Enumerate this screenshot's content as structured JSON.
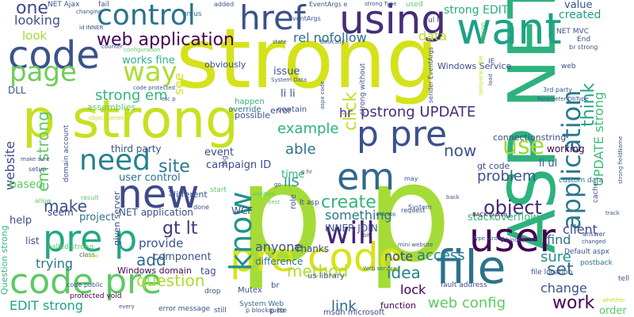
{
  "words": [
    {
      "text": "strong",
      "color": "#d5e21a"
    },
    {
      "text": "p p",
      "color": "#a5db36"
    },
    {
      "text": "p strong",
      "color": "#c7e020"
    },
    {
      "text": "ASP NET",
      "color": "#2db27d"
    },
    {
      "text": "using",
      "color": "#472c7a"
    },
    {
      "text": "code",
      "color": "#3b528b"
    },
    {
      "text": "control",
      "color": "#2c728e"
    },
    {
      "text": "href",
      "color": "#3b528b"
    },
    {
      "text": "want",
      "color": "#1fa187"
    },
    {
      "text": "new",
      "color": "#3e4a89"
    },
    {
      "text": "file",
      "color": "#2c728e"
    },
    {
      "text": "user",
      "color": "#440154"
    },
    {
      "text": "code pre",
      "color": "#5ec962"
    },
    {
      "text": "pre code",
      "color": "#d8e219"
    },
    {
      "text": "pre p",
      "color": "#22a884"
    },
    {
      "text": "p pre",
      "color": "#3b528b"
    },
    {
      "text": "em",
      "color": "#31688e"
    },
    {
      "text": "need",
      "color": "#26828e"
    },
    {
      "text": "will",
      "color": "#482475"
    },
    {
      "text": "know",
      "color": "#21918c"
    },
    {
      "text": "application",
      "color": "#2a788e"
    },
    {
      "text": "page",
      "color": "#6ece58"
    },
    {
      "text": "way",
      "color": "#addc30"
    },
    {
      "text": "web application",
      "color": "#440154"
    },
    {
      "text": "use",
      "color": "#a0da39"
    },
    {
      "text": "one",
      "color": "#3e4a89"
    },
    {
      "text": "strong EDIT",
      "color": "#27ad81"
    },
    {
      "text": "created",
      "color": "#1f9e89"
    },
    {
      "text": "value",
      "color": "#3b528b"
    },
    {
      "text": "strong em",
      "color": "#35b779"
    },
    {
      "text": "rel nofollow",
      "color": "#2c728e"
    },
    {
      "text": "pstrong UPDATE",
      "color": "#472d7b"
    },
    {
      "text": "example",
      "color": "#2db27d"
    },
    {
      "text": "think",
      "color": "#20a386"
    },
    {
      "text": "UPDATE strong",
      "color": "#3dbc74"
    },
    {
      "text": "website",
      "color": "#3e4989"
    },
    {
      "text": "em strong",
      "color": "#5ec962"
    },
    {
      "text": "site",
      "color": "#2a788e"
    },
    {
      "text": "create",
      "color": "#31b57b"
    },
    {
      "text": "object",
      "color": "#472c7a"
    },
    {
      "text": "problem",
      "color": "#3b528b"
    },
    {
      "text": "make",
      "color": "#3b528b"
    },
    {
      "text": "gt lt",
      "color": "#46327e"
    },
    {
      "text": "add",
      "color": "#31688e"
    },
    {
      "text": "access",
      "color": "#287c8e"
    },
    {
      "text": "set",
      "color": "#31688e"
    },
    {
      "text": "method",
      "color": "#addc30"
    },
    {
      "text": "idea",
      "color": "#26828e"
    },
    {
      "text": "work",
      "color": "#440154"
    },
    {
      "text": "web config",
      "color": "#5ec962"
    },
    {
      "text": "question",
      "color": "#addc30"
    },
    {
      "text": "EDIT strong",
      "color": "#20a386"
    },
    {
      "text": "link",
      "color": "#31688e"
    },
    {
      "text": "change",
      "color": "#3b528b"
    },
    {
      "text": "sure",
      "color": "#21918c"
    },
    {
      "text": "lock",
      "color": "#440154"
    },
    {
      "text": "now",
      "color": "#3b528b"
    },
    {
      "text": "able",
      "color": "#2c728e"
    },
    {
      "text": "look",
      "color": "#a5db36"
    },
    {
      "text": "looking",
      "color": "#3b528b"
    },
    {
      "text": "data",
      "color": "#b8de29"
    },
    {
      "text": "click",
      "color": "#c2df23"
    },
    {
      "text": "see",
      "color": "#d2e21b"
    },
    {
      "text": "hr",
      "color": "#46327e"
    },
    {
      "text": "something",
      "color": "#2a788e"
    },
    {
      "text": "trying",
      "color": "#2a788e"
    },
    {
      "text": "anyone",
      "color": "#3b528b"
    },
    {
      "text": "note",
      "color": "#3e4a89"
    },
    {
      "text": "IIS",
      "color": "#21918c"
    },
    {
      "text": "client",
      "color": "#3e4989"
    },
    {
      "text": "find",
      "color": "#2c728e"
    },
    {
      "text": "stackoverflow",
      "color": "#35b779"
    },
    {
      "text": "provide",
      "color": "#3b528b"
    },
    {
      "text": "component",
      "color": "#3b528b"
    },
    {
      "text": "working",
      "color": "#440154"
    },
    {
      "text": "campaign ID",
      "color": "#3e4a89"
    },
    {
      "text": "issue",
      "color": "#3b528b"
    },
    {
      "text": "li li",
      "color": "#3b528b"
    },
    {
      "text": "li ul",
      "color": "#3b528b"
    },
    {
      "text": "time",
      "color": "#2db27d"
    },
    {
      "text": "event",
      "color": "#3e4a89"
    },
    {
      "text": "user control",
      "color": "#2c728e"
    },
    {
      "text": "third party",
      "color": "#3b528b"
    },
    {
      "text": "works fine",
      "color": "#2db27d"
    },
    {
      "text": "NET application",
      "color": "#3b528b"
    },
    {
      "text": "help",
      "color": "#3e4a89"
    },
    {
      "text": "project",
      "color": "#2c728e"
    },
    {
      "text": "based",
      "color": "#5ec962"
    },
    {
      "text": "list",
      "color": "#3b528b"
    },
    {
      "text": "DLL",
      "color": "#3b528b"
    },
    {
      "text": "seem",
      "color": "#3e4a89"
    },
    {
      "text": "tag",
      "color": "#3b528b"
    },
    {
      "text": "Thanks",
      "color": "#3e4a89"
    },
    {
      "text": "difference",
      "color": "#2c728e"
    },
    {
      "text": "INNER JOIN",
      "color": "#3b528b"
    },
    {
      "text": "WCF",
      "color": "#3b528b"
    },
    {
      "text": "connectionstring",
      "color": "#3e4a89"
    },
    {
      "text": "gt code",
      "color": "#3b528b"
    },
    {
      "text": "Windows Service",
      "color": "#3e4a89"
    },
    {
      "text": "obviously",
      "color": "#3b528b"
    },
    {
      "text": "possible",
      "color": "#3b528b"
    },
    {
      "text": "error",
      "color": "#3e4a89"
    },
    {
      "text": "override",
      "color": "#2c728e"
    },
    {
      "text": "contain",
      "color": "#3b528b"
    },
    {
      "text": "happen",
      "color": "#2db27d"
    },
    {
      "text": "different",
      "color": "#3b528b"
    },
    {
      "text": "Windows domain",
      "color": "#440154"
    },
    {
      "text": "given server",
      "color": "#3e4a89"
    },
    {
      "text": "assemblies",
      "color": "#5ec962"
    },
    {
      "text": "Question strong",
      "color": "#35b779"
    },
    {
      "text": "protected void",
      "color": "#440154"
    },
    {
      "text": "Mutex",
      "color": "#3b528b"
    },
    {
      "text": "br",
      "color": "#3b528b"
    },
    {
      "text": "us library",
      "color": "#3b528b"
    },
    {
      "text": "msdn microsoft",
      "color": "#3e4a89"
    },
    {
      "text": "function",
      "color": "#440154"
    },
    {
      "text": "p hr",
      "color": "#3b528b"
    },
    {
      "text": "System Web",
      "color": "#2c728e"
    },
    {
      "text": "order",
      "color": "#5ec962"
    },
    {
      "text": "fault address",
      "color": "#3e4a89"
    },
    {
      "text": "file location",
      "color": "#3b528b"
    },
    {
      "text": "postback",
      "color": "#2c728e"
    },
    {
      "text": "Default aspx",
      "color": "#3b528b"
    },
    {
      "text": "answer",
      "color": "#3e4a89"
    },
    {
      "text": "NET MVC",
      "color": "#3b528b"
    },
    {
      "text": "IE",
      "color": "#3b528b"
    },
    {
      "text": "End",
      "color": "#3b528b"
    },
    {
      "text": "br strong",
      "color": "#3b528b"
    },
    {
      "text": "3rd party",
      "color": "#3b528b"
    },
    {
      "text": "Parameter DbType",
      "color": "#3b528b"
    },
    {
      "text": "custom data",
      "color": "#2c728e"
    },
    {
      "text": "cache",
      "color": "#3b528b"
    },
    {
      "text": "BACK button",
      "color": "#440154"
    },
    {
      "text": "Type strong",
      "color": "#3b528b"
    },
    {
      "text": "p blockquote",
      "color": "#3e4a89"
    },
    {
      "text": "changed",
      "color": "#3b528b"
    },
    {
      "text": "mini website",
      "color": "#3b528b"
    },
    {
      "text": "Web service",
      "color": "#2c728e"
    },
    {
      "text": "bit",
      "color": "#3b528b"
    },
    {
      "text": "request",
      "color": "#3b528b"
    },
    {
      "text": "may",
      "color": "#3b528b"
    },
    {
      "text": "System",
      "color": "#3b528b"
    },
    {
      "text": "lt asp",
      "color": "#3b528b"
    },
    {
      "text": "best",
      "color": "#5ec962"
    },
    {
      "text": "addition",
      "color": "#5ec962"
    },
    {
      "text": "go",
      "color": "#3b528b"
    },
    {
      "text": "role",
      "color": "#3b528b"
    },
    {
      "text": "start",
      "color": "#5ec962"
    },
    {
      "text": "log",
      "color": "#3b528b"
    },
    {
      "text": "done",
      "color": "#3b528b"
    },
    {
      "text": "result",
      "color": "#5ec962"
    },
    {
      "text": "allow",
      "color": "#5ec962"
    },
    {
      "text": "setup",
      "color": "#3b528b"
    },
    {
      "text": "make sure",
      "color": "#3b528b"
    },
    {
      "text": "call",
      "color": "#3b528b"
    },
    {
      "text": "domain account",
      "color": "#3b528b"
    },
    {
      "text": "code public",
      "color": "#3b528b"
    },
    {
      "text": "class",
      "color": "#3b528b"
    },
    {
      "text": "called strong",
      "color": "#5ec962"
    },
    {
      "text": "show",
      "color": "#c2df23"
    },
    {
      "text": "drop",
      "color": "#3b528b"
    },
    {
      "text": "every",
      "color": "#3b528b"
    },
    {
      "text": "error message",
      "color": "#3b528b"
    },
    {
      "text": "still",
      "color": "#3b528b"
    },
    {
      "text": "p blockquote",
      "color": "#3b528b"
    },
    {
      "text": "NET Ajax",
      "color": "#3b528b"
    },
    {
      "text": "id INNER",
      "color": "#3b528b"
    },
    {
      "text": "changing",
      "color": "#3b528b"
    },
    {
      "text": "counter",
      "color": "#3b528b"
    },
    {
      "text": "fail",
      "color": "#3b528b"
    },
    {
      "text": "en us",
      "color": "#2c728e"
    },
    {
      "text": "added",
      "color": "#3b528b"
    },
    {
      "text": "EventArgs e",
      "color": "#3b528b"
    },
    {
      "text": "strong Type",
      "color": "#3b528b"
    },
    {
      "text": "used",
      "color": "#5ec962"
    },
    {
      "text": "ul li",
      "color": "#3b528b"
    },
    {
      "text": "EventArgs",
      "color": "#3b528b"
    },
    {
      "text": "configuration",
      "color": "#5ec962"
    },
    {
      "text": "object sender",
      "color": "#c2df23"
    },
    {
      "text": "code protected",
      "color": "#3b528b"
    },
    {
      "text": "System Data",
      "color": "#3b528b"
    },
    {
      "text": "aspx code",
      "color": "#3b528b"
    },
    {
      "text": "sender EventArgs",
      "color": "#3b528b"
    },
    {
      "text": "etc p",
      "color": "#3b528b"
    },
    {
      "text": "state",
      "color": "#3b528b"
    },
    {
      "text": "Basically",
      "color": "#3b528b"
    },
    {
      "text": "web app",
      "color": "#3b528b"
    },
    {
      "text": "temporary file",
      "color": "#c2df23"
    },
    {
      "text": "load",
      "color": "#3b528b"
    },
    {
      "text": "web",
      "color": "#3b528b"
    },
    {
      "text": "reason",
      "color": "#5ec962"
    },
    {
      "text": "strong without",
      "color": "#3b528b"
    },
    {
      "text": "p hr",
      "color": "#3b528b"
    },
    {
      "text": "tell",
      "color": "#3b528b"
    },
    {
      "text": "whether",
      "color": "#c2df23"
    },
    {
      "text": "back",
      "color": "#3b528b"
    },
    {
      "text": "track",
      "color": "#3b528b"
    },
    {
      "text": "strong fieldName",
      "color": "#3b528b"
    }
  ]
}
